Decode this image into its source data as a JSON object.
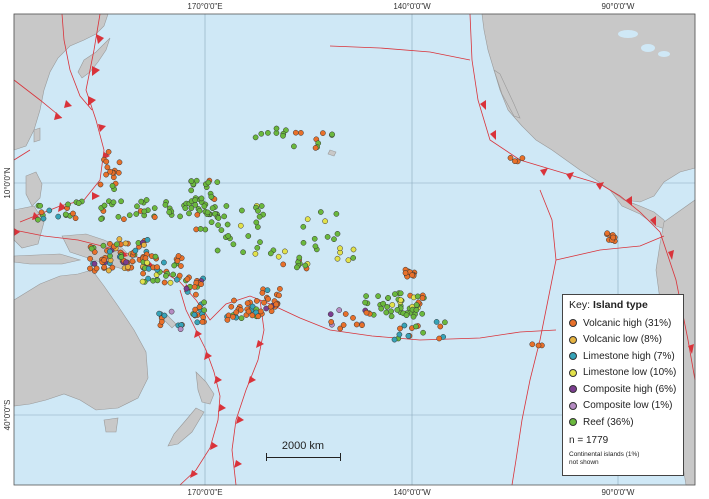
{
  "axes": {
    "top_labels": [
      "170°0'0\"E",
      "140°0'0\"W",
      "90°0'0\"W"
    ],
    "bottom_labels": [
      "170°0'0\"E",
      "140°0'0\"W",
      "90°0'0\"W"
    ],
    "left_labels": [
      "10°0'0\"N",
      "40°0'0\"S"
    ]
  },
  "colors": {
    "ocean": "#cfe8f6",
    "land": "#c8c8c8",
    "graticule": "#8aa8bd",
    "plate_boundary": "#d9333a",
    "volcanic_high": "#e8702a",
    "volcanic_low": "#e6b341",
    "limestone_high": "#36a3b8",
    "limestone_low": "#e2e14a",
    "composite_high": "#7b3d8f",
    "composite_low": "#b58bc2",
    "reef": "#6ab83d"
  },
  "legend": {
    "key_prefix": "Key:",
    "key_title": "Island type",
    "items": [
      {
        "label": "Volcanic high (31%)",
        "color": "#e8702a"
      },
      {
        "label": "Volcanic low (8%)",
        "color": "#e6b341"
      },
      {
        "label": "Limestone high (7%)",
        "color": "#36a3b8"
      },
      {
        "label": "Limestone low (10%)",
        "color": "#e2e14a"
      },
      {
        "label": "Composite high (6%)",
        "color": "#7b3d8f"
      },
      {
        "label": "Composite low (1%)",
        "color": "#b58bc2"
      },
      {
        "label": "Reef (36%)",
        "color": "#6ab83d"
      }
    ],
    "count_label": "n = 1779",
    "note_line1": "Continental islands (1%)",
    "note_line2": "not shown"
  },
  "scale_bar": {
    "label": "2000 km"
  }
}
